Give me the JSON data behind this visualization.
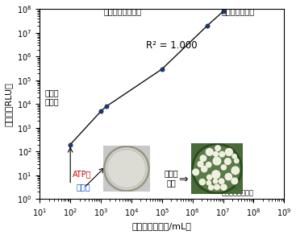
{
  "x_data": [
    100.0,
    1000.0,
    1500.0,
    100000.0,
    3000000.0,
    10000000.0
  ],
  "y_data": [
    200,
    5000,
    8000,
    300000.0,
    20000000.0,
    80000000.0
  ],
  "xlim_log": [
    1,
    9
  ],
  "ylim_log": [
    0,
    8
  ],
  "xlabel": "カビ胞子数（個/mL）",
  "ylabel": "発光量（RLU）",
  "r2_text": "R² = 1.000",
  "annotation_hanichi": "半日で\n判定可",
  "annotation_kanten": "寒天培地に接種時",
  "annotation_nikusen": "肉眼観察で判定",
  "annotation_suujitsu": "数日間\n培養",
  "annotation_image": "（イメージ写真）",
  "annotation_atp": "ATP法",
  "annotation_baiyo": "培養法",
  "line_color": "#111111",
  "marker_color": "#1a3a7a",
  "background_color": "#ffffff",
  "atp_color": "#cc0000",
  "baiyo_color": "#1155cc",
  "font_size_label": 8,
  "font_size_annotation": 7,
  "font_size_r2": 8.5,
  "font_size_tick": 7
}
